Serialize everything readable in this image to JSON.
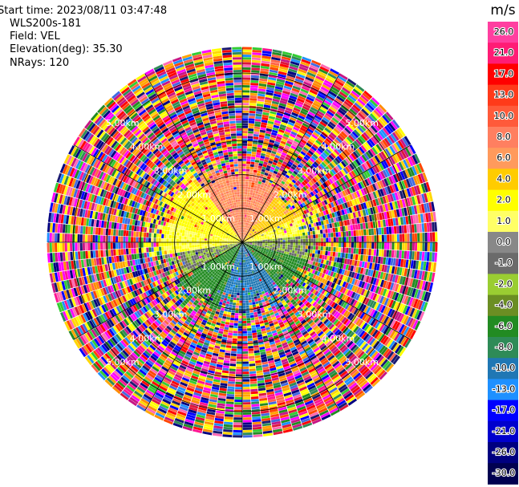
{
  "header": {
    "start_time_label": "Start time:",
    "start_time": "2023/08/11 03:47:48",
    "instrument": "WLS200s-181",
    "field_label": "Field:",
    "field": "VEL",
    "elevation_label": "Elevation(deg):",
    "elevation": "35.30",
    "nrays_label": "NRays:",
    "nrays": "120"
  },
  "colorbar": {
    "unit": "m/s",
    "ticks": [
      "26.0",
      "21.0",
      "17.0",
      "13.0",
      "10.0",
      "8.0",
      "6.0",
      "4.0",
      "2.0",
      "1.0",
      "0.0",
      "-1.0",
      "-2.0",
      "-4.0",
      "-6.0",
      "-8.0",
      "-10.0",
      "-13.0",
      "-17.0",
      "-21.0",
      "-26.0",
      "-30.0"
    ],
    "colors": [
      "#ff3fa0",
      "#ff1c75",
      "#ff0000",
      "#ff3a1a",
      "#ff5a3a",
      "#ff7f60",
      "#ff9a5c",
      "#ffcc00",
      "#ffff00",
      "#ffff66",
      "#888888",
      "#6b6b6b",
      "#9acd32",
      "#6b8e23",
      "#228b22",
      "#2e8b57",
      "#1f77b4",
      "#1e90ff",
      "#0000ff",
      "#0000cd",
      "#000080",
      "#000050"
    ]
  },
  "chart_data": {
    "type": "ppi",
    "field": "VEL",
    "units": "m/s",
    "nrays": 120,
    "range_rings_km": [
      1.0,
      2.0,
      3.0,
      4.0,
      5.0
    ],
    "ring_labels": [
      "1.00km",
      "2.00km",
      "3.00km",
      "4.00km",
      "5.00km"
    ],
    "color_range": [
      -30.0,
      26.0
    ],
    "radial_pattern": [
      {
        "azimuth_sector": "north (300-60 deg)",
        "range_km": [
          0.0,
          1.8
        ],
        "velocity": 8.0
      },
      {
        "azimuth_sector": "west-northwest",
        "range_km": [
          0.0,
          2.3
        ],
        "velocity": 2.5
      },
      {
        "azimuth_sector": "west-southwest",
        "range_km": [
          0.0,
          2.0
        ],
        "velocity": -0.5
      },
      {
        "azimuth_sector": "south-southwest",
        "range_km": [
          0.0,
          1.9
        ],
        "velocity": -5.0
      },
      {
        "azimuth_sector": "south (160-200 deg)",
        "range_km": [
          0.0,
          1.5
        ],
        "velocity": -9.0
      },
      {
        "azimuth_sector": "southeast",
        "range_km": [
          0.0,
          1.9
        ],
        "velocity": -5.5
      },
      {
        "azimuth_sector": "east",
        "range_km": [
          0.0,
          1.8
        ],
        "velocity": -1.5
      },
      {
        "azimuth_sector": "northeast",
        "range_km": [
          0.0,
          1.8
        ],
        "velocity": 5.0
      },
      {
        "azimuth_sector": "all",
        "range_km": [
          2.3,
          5.7
        ],
        "velocity": "noise (mixed)"
      }
    ]
  }
}
